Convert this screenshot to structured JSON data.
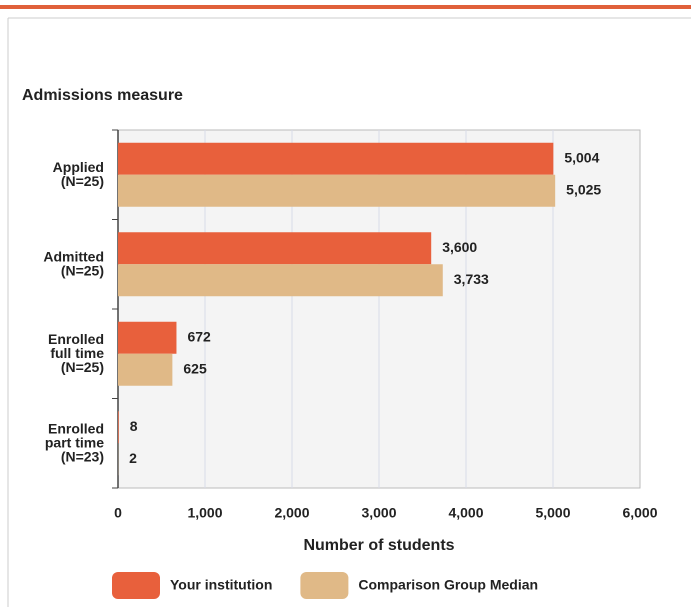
{
  "chart_data": {
    "type": "barh",
    "title": "Admissions measure",
    "categories": [
      "Applied\n(N=25)",
      "Admitted\n(N=25)",
      "Enrolled\nfull time\n(N=25)",
      "Enrolled\npart time\n(N=23)"
    ],
    "series": [
      {
        "name": "Your institution",
        "color": "#e8603c",
        "values": [
          5004,
          3600,
          672,
          8
        ],
        "value_labels": [
          "5,004",
          "3,600",
          "672",
          "8"
        ]
      },
      {
        "name": "Comparison Group Median",
        "color": "#e0b987",
        "values": [
          5025,
          3733,
          625,
          2
        ],
        "value_labels": [
          "5,025",
          "3,733",
          "625",
          "2"
        ]
      }
    ],
    "xlabel": "Number of students",
    "xlim": [
      0,
      6000
    ],
    "xticks": [
      0,
      {
        "value": 1000,
        "label": "1,000"
      },
      {
        "value": 2000,
        "label": "2,000"
      },
      {
        "value": 3000,
        "label": "3,000"
      },
      {
        "value": 4000,
        "label": "4,000"
      },
      {
        "value": 5000,
        "label": "5,000"
      },
      {
        "value": 6000,
        "label": "6,000"
      }
    ],
    "grid": true
  }
}
